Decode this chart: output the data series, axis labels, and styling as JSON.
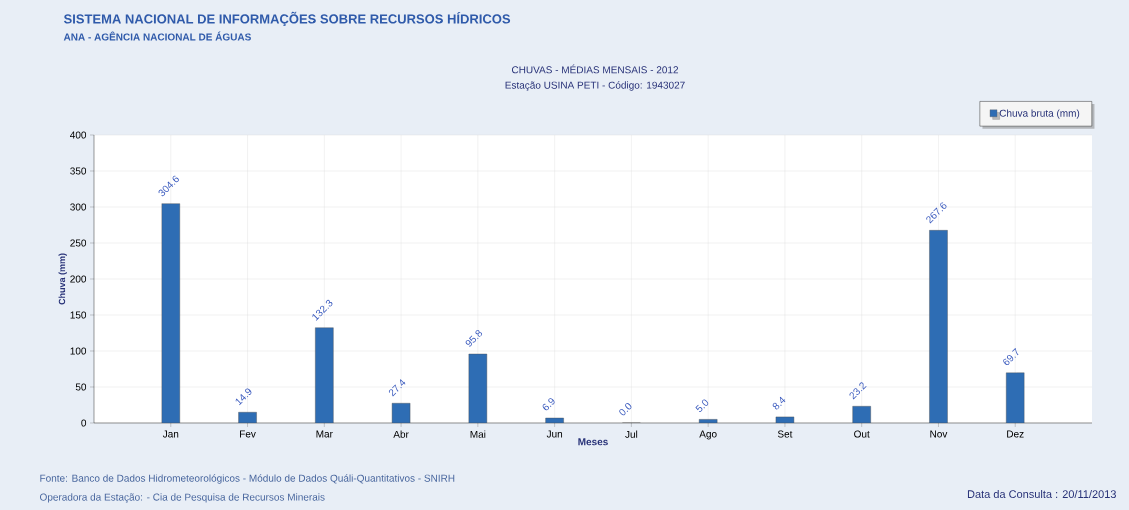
{
  "chart_data": {
    "type": "bar",
    "title": "CHUVAS - MÉDIAS MENSAIS - 2012",
    "subtitle": "Estação USINA PETI - Código: 1943027",
    "xlabel": "Meses",
    "ylabel": "Chuva (mm)",
    "categories": [
      "Jan",
      "Fev",
      "Mar",
      "Abr",
      "Mai",
      "Jun",
      "Jul",
      "Ago",
      "Set",
      "Out",
      "Nov",
      "Dez"
    ],
    "series": [
      {
        "name": "Chuva bruta (mm)",
        "color": "#2e6db4",
        "values": [
          304.6,
          14.9,
          132.3,
          27.4,
          95.8,
          6.9,
          0.0,
          5.0,
          8.4,
          23.2,
          267.6,
          69.7
        ],
        "value_labels": [
          "304.6",
          "14.9",
          "132.3",
          "27.4",
          "95.8",
          "6.9",
          "0.0",
          "5.0",
          "8.4",
          "23.2",
          "267.6",
          "69.7"
        ]
      }
    ],
    "ylim": [
      0,
      400
    ],
    "yticks": [
      0,
      50,
      100,
      150,
      200,
      250,
      300,
      350,
      400
    ],
    "grid": true,
    "legend": "top right",
    "annotations": [
      "SISTEMA NACIONAL DE INFORMAÇÕES SOBRE RECURSOS HÍDRICOS",
      "ANA - AGÊNCIA NACIONAL DE ÁGUAS",
      "Fonte: Banco de Dados Hidrometeorológicos - Módulo de Dados Quáli-Quantitativos - SNIRH",
      "Operadora da Estação:  - Cia de Pesquisa de Recursos Minerais",
      "Data da Consulta : 20/11/2013"
    ]
  }
}
